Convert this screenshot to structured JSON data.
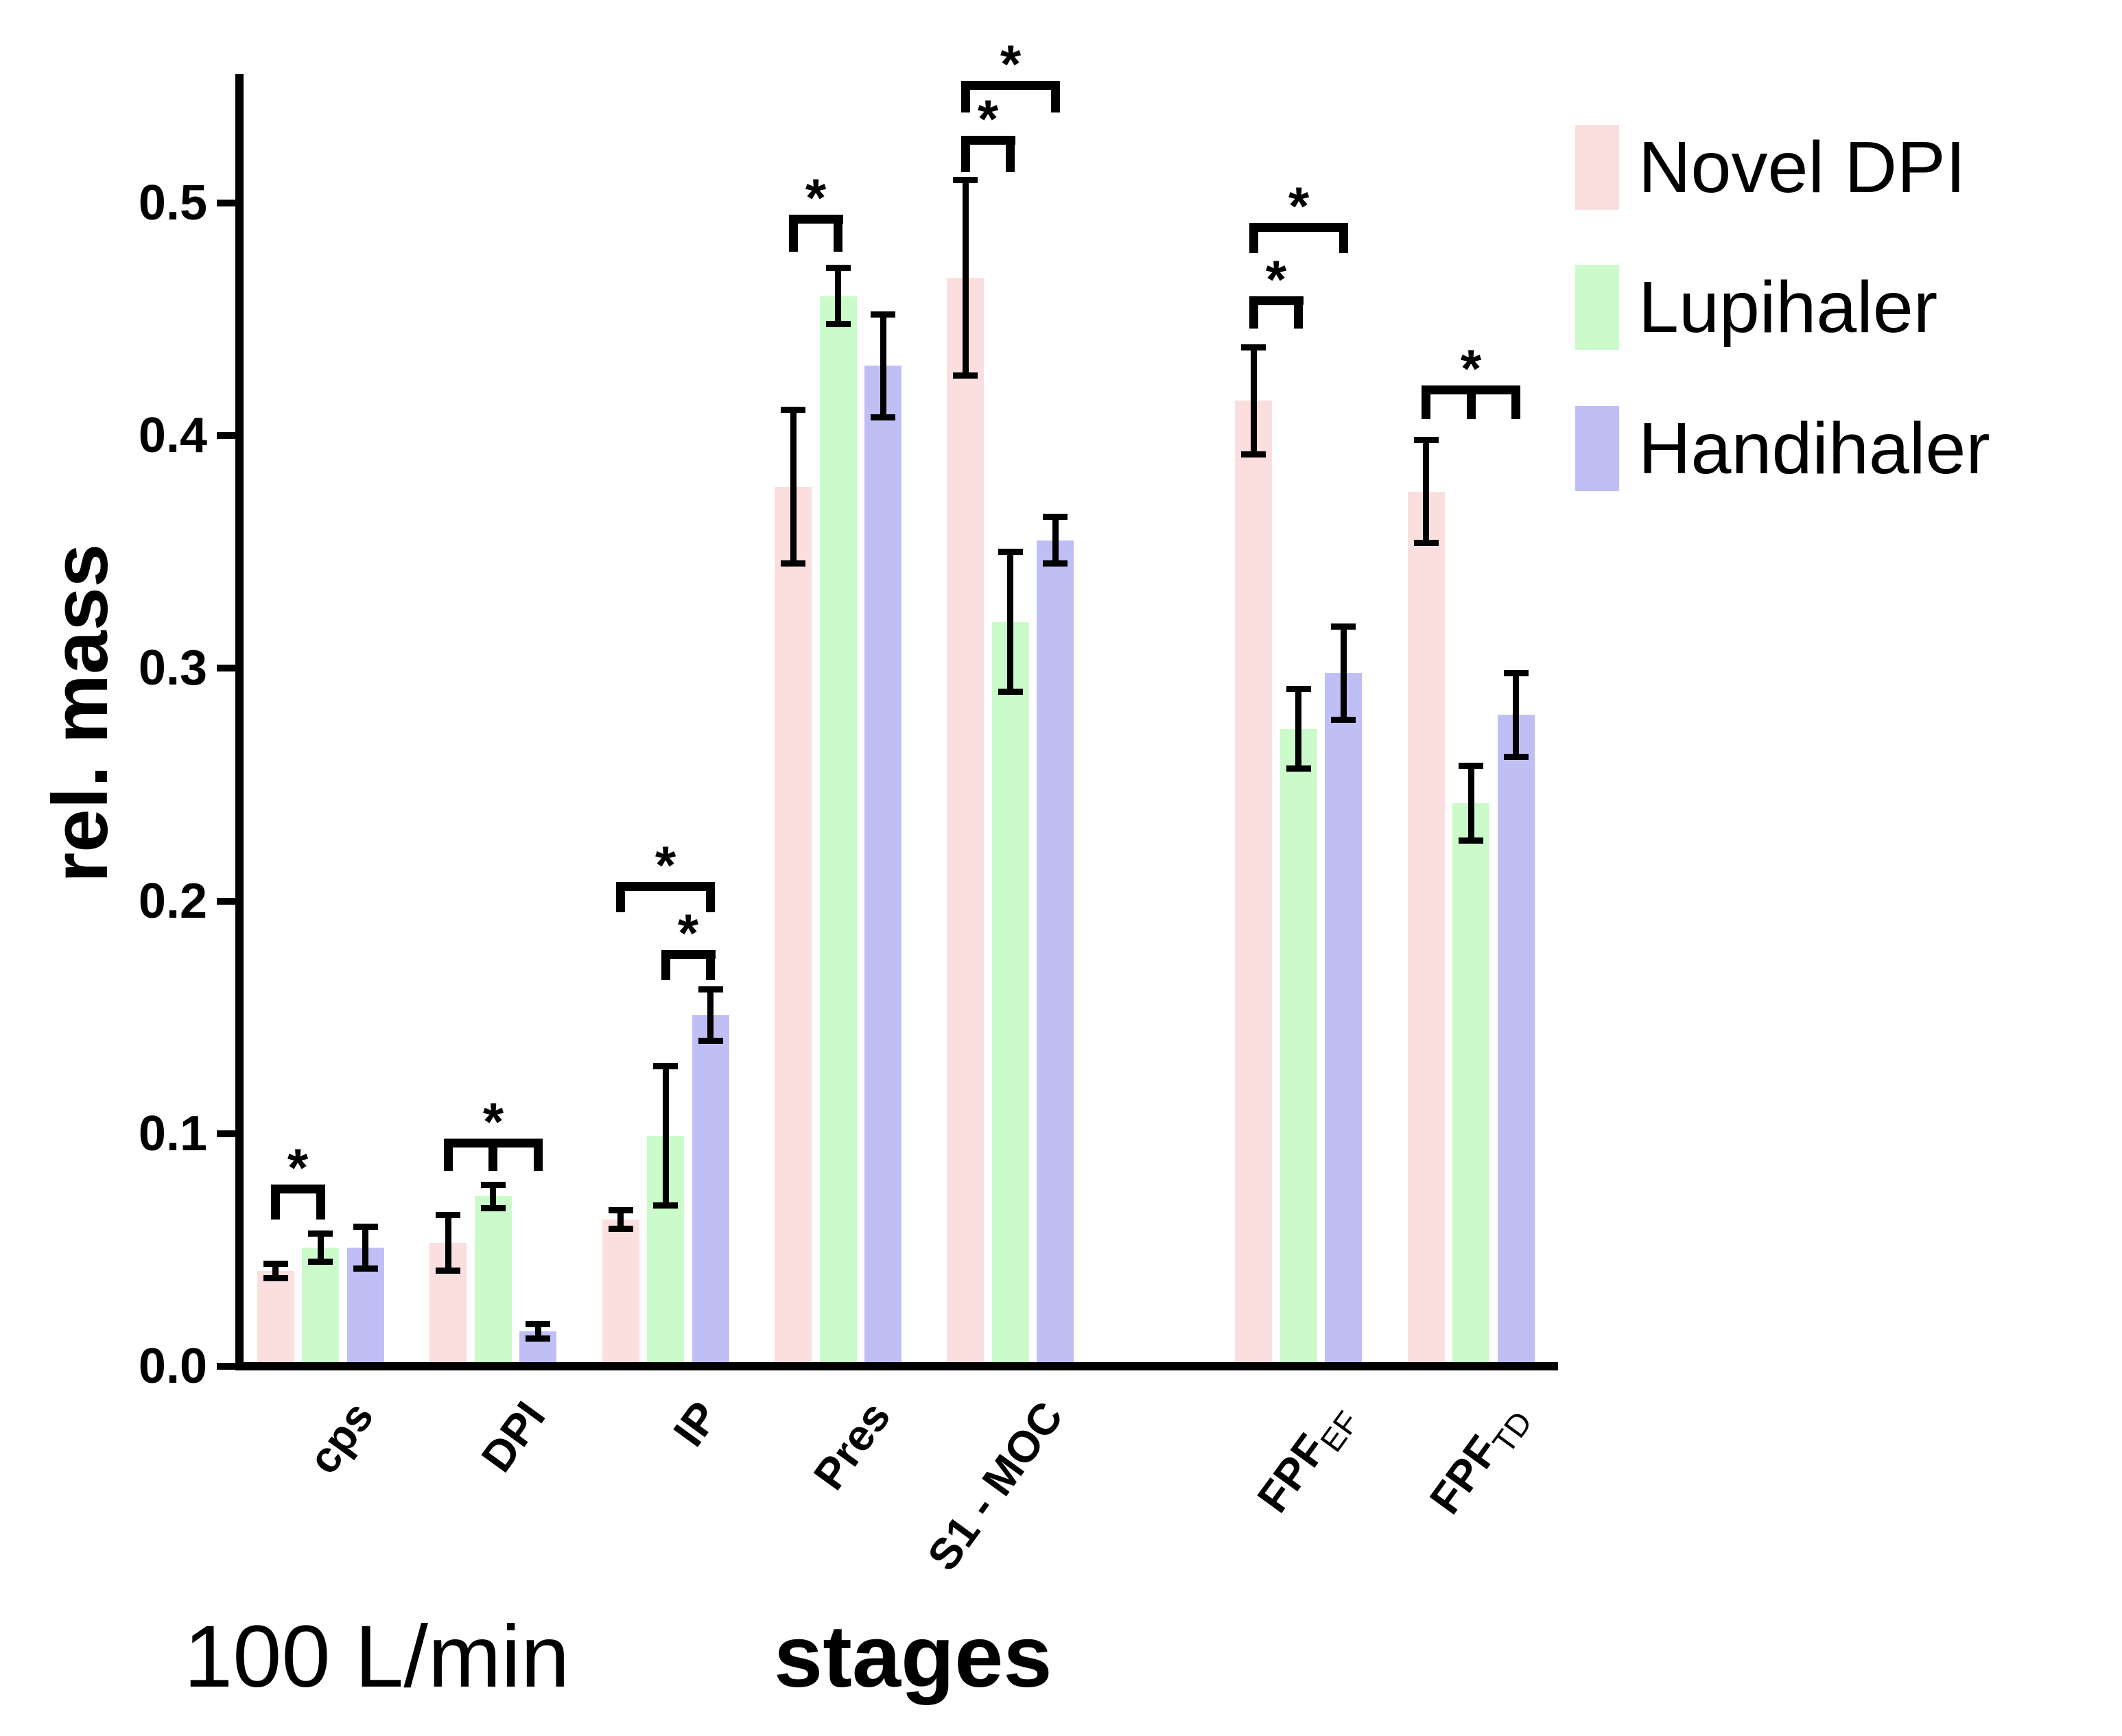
{
  "figure": {
    "yaxis_title": "rel. mass",
    "xaxis_title": "stages",
    "flow_rate_label": "100 L/min",
    "background_color": "#ffffff",
    "axis_color": "#000000"
  },
  "legend": {
    "position": "right",
    "items": [
      {
        "label": "Novel DPI",
        "color": "#fbdede"
      },
      {
        "label": "Lupihaler",
        "color": "#cbfbca"
      },
      {
        "label": "Handihaler",
        "color": "#bfbff6"
      }
    ]
  },
  "chart_data": {
    "type": "bar",
    "title": "",
    "xlabel": "stages",
    "ylabel": "rel. mass",
    "annotation": "100 L/min",
    "grid": false,
    "legend_position": "right",
    "ylim": [
      0,
      0.55
    ],
    "ytick_labels": [
      "0.0",
      "0.1",
      "0.2",
      "0.3",
      "0.4",
      "0.5"
    ],
    "categories": [
      "cps",
      "DPI",
      "IP",
      "Pres",
      "S1 - MOC",
      "FPF_EF",
      "FPF_TD"
    ],
    "category_display": [
      {
        "text": "cps",
        "sub": ""
      },
      {
        "text": "DPI",
        "sub": ""
      },
      {
        "text": "IP",
        "sub": ""
      },
      {
        "text": "Pres",
        "sub": ""
      },
      {
        "text": "S1 - MOC",
        "sub": ""
      },
      {
        "text": "FPF",
        "sub": "EF"
      },
      {
        "text": "FPF",
        "sub": "TD"
      }
    ],
    "series": [
      {
        "name": "Novel DPI",
        "color": "#fbdede",
        "values": [
          0.041,
          0.053,
          0.063,
          0.378,
          0.468,
          0.415,
          0.376
        ],
        "errors": [
          0.003,
          0.012,
          0.004,
          0.033,
          0.042,
          0.023,
          0.022
        ]
      },
      {
        "name": "Lupihaler",
        "color": "#cbfbca",
        "values": [
          0.051,
          0.073,
          0.099,
          0.46,
          0.32,
          0.274,
          0.242
        ],
        "errors": [
          0.006,
          0.005,
          0.03,
          0.012,
          0.03,
          0.017,
          0.016
        ]
      },
      {
        "name": "Handihaler",
        "color": "#bfbff6",
        "values": [
          0.051,
          0.015,
          0.151,
          0.43,
          0.355,
          0.298,
          0.28
        ],
        "errors": [
          0.009,
          0.003,
          0.011,
          0.022,
          0.01,
          0.02,
          0.018
        ]
      }
    ],
    "significance": [
      {
        "category": "cps",
        "type": "pair",
        "between": [
          "Novel DPI",
          "Lupihaler"
        ],
        "label": "*",
        "y": 0.078,
        "drop": 0.015
      },
      {
        "category": "DPI",
        "type": "comb",
        "between": [
          "Novel DPI",
          "Lupihaler",
          "Handihaler"
        ],
        "label": "*",
        "y": 0.098,
        "drop": 0.014
      },
      {
        "category": "IP",
        "type": "pair",
        "between": [
          "Novel DPI",
          "Handihaler"
        ],
        "label": "*",
        "y": 0.208,
        "drop": 0.013
      },
      {
        "category": "IP",
        "type": "pair",
        "between": [
          "Lupihaler",
          "Handihaler"
        ],
        "label": "*",
        "y": 0.179,
        "drop": 0.013
      },
      {
        "category": "Pres",
        "type": "pair",
        "between": [
          "Novel DPI",
          "Lupihaler"
        ],
        "label": "*",
        "y": 0.495,
        "drop": 0.016
      },
      {
        "category": "S1 - MOC",
        "type": "pair",
        "between": [
          "Novel DPI",
          "Handihaler"
        ],
        "label": "*",
        "y": 0.5525,
        "drop": 0.0135
      },
      {
        "category": "S1 - MOC",
        "type": "pair",
        "between": [
          "Novel DPI",
          "Lupihaler"
        ],
        "label": "*",
        "y": 0.529,
        "drop": 0.0155
      },
      {
        "category": "FPF_EF",
        "type": "pair",
        "between": [
          "Novel DPI",
          "Handihaler"
        ],
        "label": "*",
        "y": 0.4915,
        "drop": 0.013
      },
      {
        "category": "FPF_EF",
        "type": "pair",
        "between": [
          "Novel DPI",
          "Lupihaler"
        ],
        "label": "*",
        "y": 0.46,
        "drop": 0.014
      },
      {
        "category": "FPF_TD",
        "type": "comb",
        "between": [
          "Novel DPI",
          "Lupihaler",
          "Handihaler"
        ],
        "label": "*",
        "y": 0.4215,
        "drop": 0.0145
      }
    ]
  }
}
